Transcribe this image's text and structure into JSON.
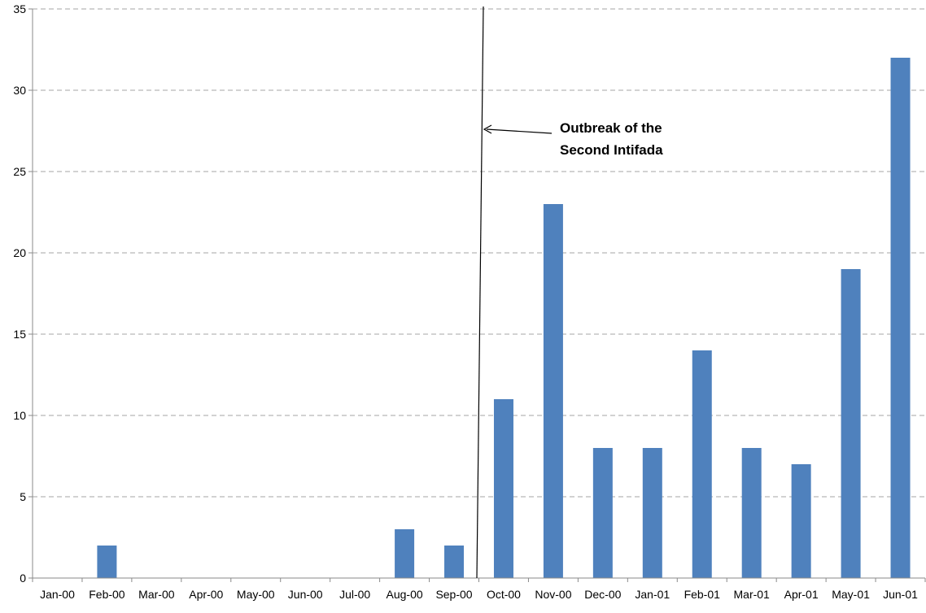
{
  "chart_data": {
    "type": "bar",
    "categories": [
      "Jan-00",
      "Feb-00",
      "Mar-00",
      "Apr-00",
      "May-00",
      "Jun-00",
      "Jul-00",
      "Aug-00",
      "Sep-00",
      "Oct-00",
      "Nov-00",
      "Dec-00",
      "Jan-01",
      "Feb-01",
      "Mar-01",
      "Apr-01",
      "May-01",
      "Jun-01"
    ],
    "values": [
      0,
      2,
      0,
      0,
      0,
      0,
      0,
      3,
      2,
      11,
      23,
      8,
      8,
      14,
      8,
      7,
      19,
      32
    ],
    "ylim": [
      0,
      35
    ],
    "yticks": [
      "0",
      "5",
      "10",
      "15",
      "20",
      "25",
      "30",
      "35"
    ],
    "grid": true,
    "bar_color": "#4F81BD",
    "annotation": {
      "lines": [
        "Outbreak of the",
        "Second Intifada"
      ]
    }
  }
}
